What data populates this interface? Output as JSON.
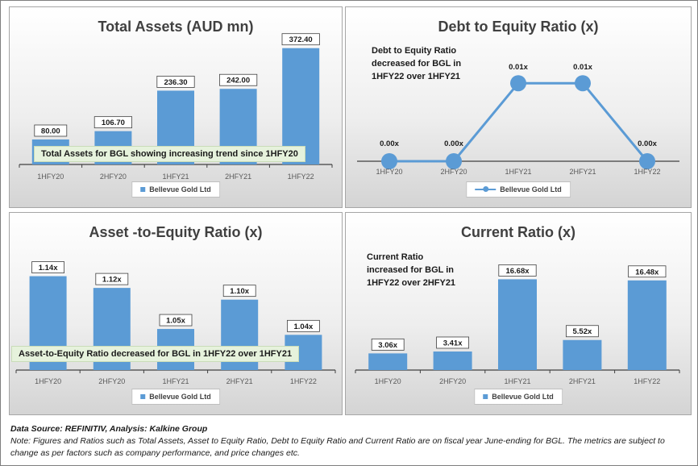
{
  "chart_data": [
    {
      "type": "bar",
      "title": "Total Assets (AUD mn)",
      "categories": [
        "1HFY20",
        "2HFY20",
        "1HFY21",
        "2HFY21",
        "1HFY22"
      ],
      "series": [
        {
          "name": "Bellevue Gold Ltd",
          "values": [
            80.0,
            106.7,
            236.3,
            242.0,
            372.4
          ]
        }
      ],
      "data_labels": [
        "80.00",
        "106.70",
        "236.30",
        "242.00",
        "372.40"
      ],
      "ylim": [
        0,
        400
      ],
      "annotation": "Total Assets for BGL showing increasing trend since 1HFY20",
      "legend_position": "bottom",
      "grid": false
    },
    {
      "type": "line",
      "title": "Debt to Equity Ratio (x)",
      "categories": [
        "1HFY20",
        "2HFY20",
        "1HFY21",
        "2HFY21",
        "1HFY22"
      ],
      "series": [
        {
          "name": "Bellevue Gold Ltd",
          "values": [
            0.0,
            0.0,
            0.01,
            0.01,
            0.0
          ]
        }
      ],
      "data_labels": [
        "0.00x",
        "0.00x",
        "0.01x",
        "0.01x",
        "0.00x"
      ],
      "ylim": [
        0,
        0.0125
      ],
      "annotation": "Debt to Equity Ratio decreased for BGL in 1HFY22 over 1HFY21",
      "legend_position": "bottom",
      "grid": false
    },
    {
      "type": "bar",
      "title": "Asset -to-Equity Ratio (x)",
      "categories": [
        "1HFY20",
        "2HFY20",
        "1HFY21",
        "2HFY21",
        "1HFY22"
      ],
      "series": [
        {
          "name": "Bellevue Gold Ltd",
          "values": [
            1.14,
            1.12,
            1.05,
            1.1,
            1.04
          ]
        }
      ],
      "data_labels": [
        "1.14x",
        "1.12x",
        "1.05x",
        "1.10x",
        "1.04x"
      ],
      "ylim": [
        0.98,
        1.16
      ],
      "annotation": "Asset-to-Equity Ratio decreased for BGL in 1HFY22 over 1HFY21",
      "legend_position": "bottom",
      "grid": false
    },
    {
      "type": "bar",
      "title": "Current Ratio (x)",
      "categories": [
        "1HFY20",
        "2HFY20",
        "1HFY21",
        "2HFY21",
        "1HFY22"
      ],
      "series": [
        {
          "name": "Bellevue Gold Ltd",
          "values": [
            3.06,
            3.41,
            16.68,
            5.52,
            16.48
          ]
        }
      ],
      "data_labels": [
        "3.06x",
        "3.41x",
        "16.68x",
        "5.52x",
        "16.48x"
      ],
      "ylim": [
        0,
        20
      ],
      "annotation": "Current Ratio increased for BGL in 1HFY22 over 2HFY21",
      "legend_position": "bottom",
      "grid": false
    }
  ],
  "colors": {
    "series": "#5b9bd5",
    "annotation_box": "#e6f2dc"
  },
  "footer": {
    "source": "Data Source: REFINITIV, Analysis: Kalkine Group",
    "note": "Note: Figures and Ratios such as Total Assets, Asset to Equity Ratio, Debt to Equity Ratio and Current Ratio are on fiscal year June-ending for BGL. The metrics are subject to change as per factors such as company performance, and price changes etc."
  }
}
